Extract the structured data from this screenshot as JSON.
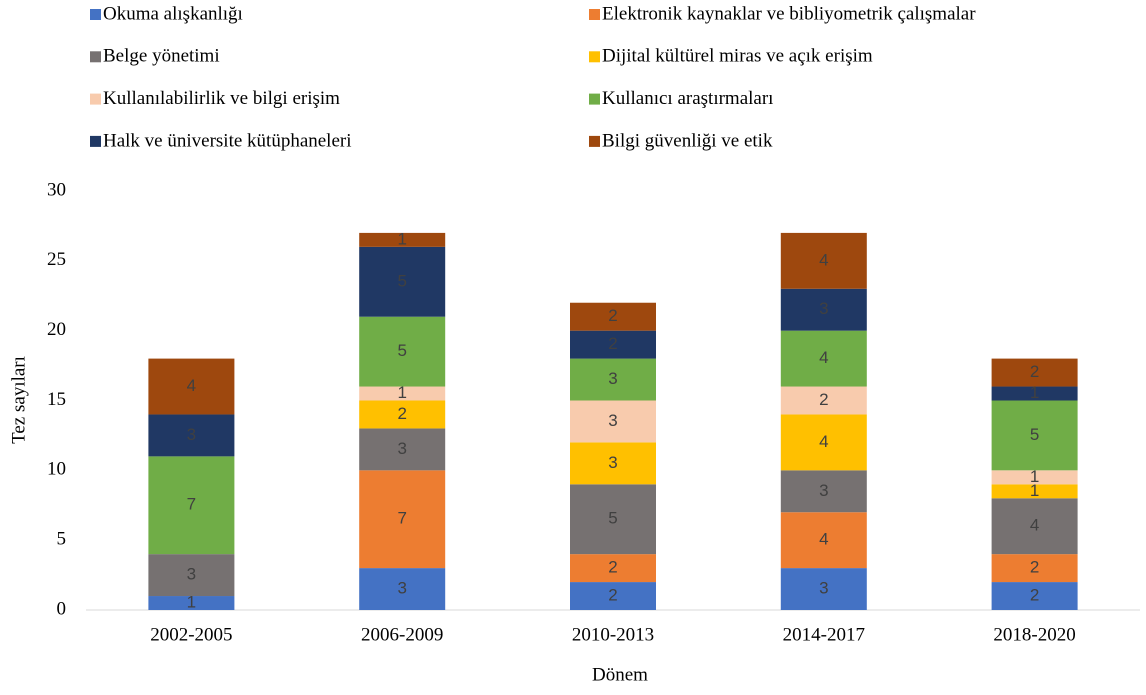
{
  "chart_data": {
    "type": "stacked_bar",
    "categories": [
      "2002-2005",
      "2006-2009",
      "2010-2013",
      "2014-2017",
      "2018-2020"
    ],
    "series": [
      {
        "name": "Okuma alışkanlığı",
        "color": "#4472c4",
        "values": [
          1,
          3,
          2,
          3,
          2
        ]
      },
      {
        "name": "Elektronik kaynaklar ve bibliyometrik çalışmalar",
        "color": "#ed7d31",
        "values": [
          null,
          7,
          2,
          4,
          2
        ]
      },
      {
        "name": "Belge yönetimi",
        "color": "#767171",
        "values": [
          3,
          3,
          5,
          3,
          4
        ]
      },
      {
        "name": "Dijital kültürel miras ve açık erişim",
        "color": "#ffc000",
        "values": [
          null,
          2,
          3,
          4,
          1
        ]
      },
      {
        "name": "Kullanılabilirlik ve bilgi erişim",
        "color": "#f8cbad",
        "values": [
          null,
          1,
          3,
          2,
          1
        ]
      },
      {
        "name": "Kullanıcı araştırmaları",
        "color": "#70ad47",
        "values": [
          7,
          5,
          3,
          4,
          5
        ]
      },
      {
        "name": "Halk ve üniversite kütüphaneleri",
        "color": "#203864",
        "values": [
          3,
          5,
          2,
          3,
          1
        ]
      },
      {
        "name": "Bilgi güvenliği ve etik",
        "color": "#9e480e",
        "values": [
          4,
          1,
          2,
          4,
          2
        ]
      }
    ],
    "xlabel": "Dönem",
    "ylabel": "Tez sayıları",
    "ylim": [
      0,
      30
    ],
    "yticks": [
      0,
      5,
      10,
      15,
      20,
      25,
      30
    ],
    "grid": false,
    "legend": "top"
  }
}
